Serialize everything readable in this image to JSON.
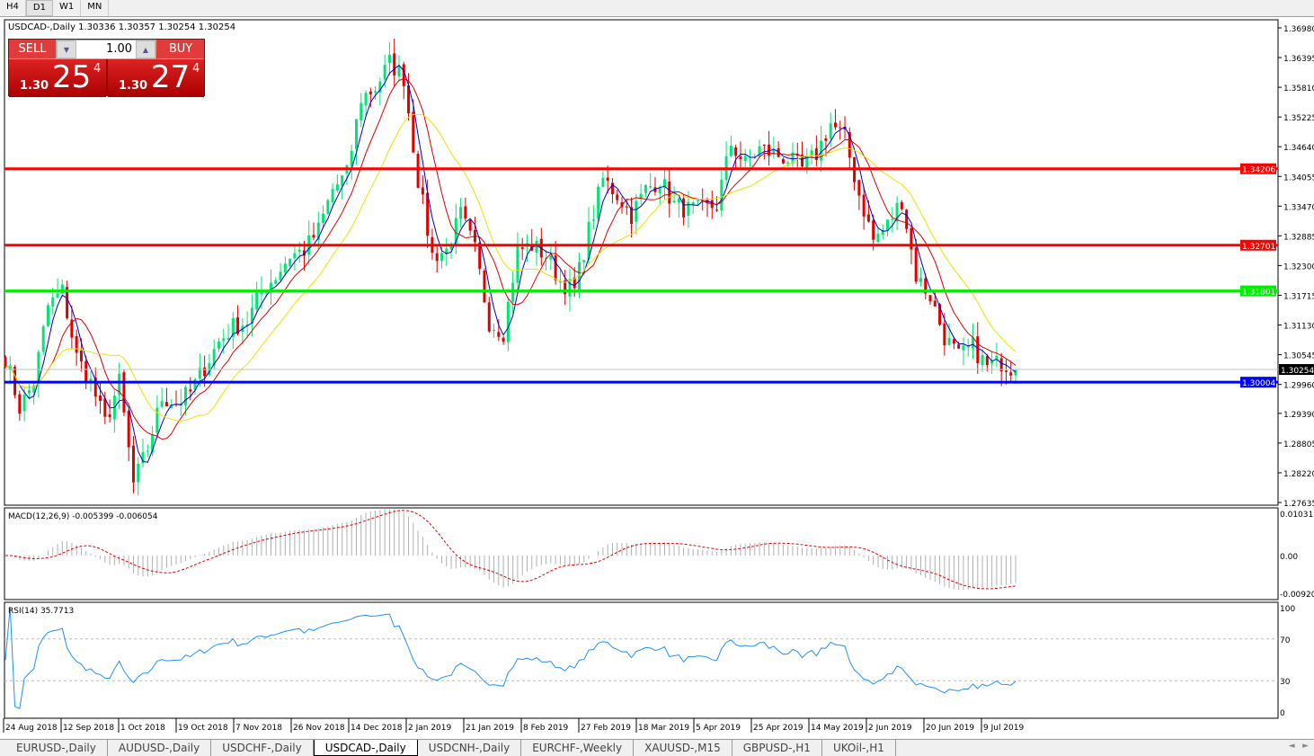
{
  "timeframes": [
    "H4",
    "D1",
    "W1",
    "MN"
  ],
  "active_timeframe": "D1",
  "chart_title": "USDCAD-,Daily  1.30336 1.30357 1.30254 1.30254",
  "trade_panel": {
    "sell_label": "SELL",
    "buy_label": "BUY",
    "lot": "1.00",
    "sell_small": "1.30",
    "sell_big": "25",
    "sell_sup": "4",
    "buy_small": "1.30",
    "buy_big": "27",
    "buy_sup": "4"
  },
  "colors": {
    "bull": "#00e676",
    "bear": "#e00000",
    "ma_fast": "#0000cc",
    "ma_mid": "#e00000",
    "ma_slow": "#e6e600",
    "rsi": "#1e90ff",
    "macd_hist": "#b0b0b0",
    "macd_signal": "#e00000"
  },
  "chart_data": {
    "type": "candlestick",
    "ylim": [
      1.27635,
      1.3698
    ],
    "yticks": [
      "1.36980",
      "1.36395",
      "1.35810",
      "1.35225",
      "1.34640",
      "1.34055",
      "1.33470",
      "1.32885",
      "1.32300",
      "1.31715",
      "1.31130",
      "1.30545",
      "1.29960",
      "1.29390",
      "1.28805",
      "1.28220",
      "1.27635"
    ],
    "xticks": [
      "24 Aug 2018",
      "12 Sep 2018",
      "1 Oct 2018",
      "19 Oct 2018",
      "7 Nov 2018",
      "26 Nov 2018",
      "14 Dec 2018",
      "2 Jan 2019",
      "21 Jan 2019",
      "8 Feb 2019",
      "27 Feb 2019",
      "18 Mar 2019",
      "5 Apr 2019",
      "25 Apr 2019",
      "14 May 2019",
      "2 Jun 2019",
      "20 Jun 2019",
      "9 Jul 2019"
    ],
    "close_samples_every_3_bars": [
      1.305,
      1.295,
      1.3,
      1.315,
      1.318,
      1.305,
      1.3,
      1.292,
      1.3,
      1.28,
      1.287,
      1.297,
      1.296,
      1.298,
      1.303,
      1.308,
      1.311,
      1.312,
      1.318,
      1.321,
      1.325,
      1.326,
      1.33,
      1.338,
      1.341,
      1.356,
      1.358,
      1.363,
      1.36,
      1.34,
      1.325,
      1.326,
      1.333,
      1.326,
      1.312,
      1.31,
      1.326,
      1.327,
      1.325,
      1.32,
      1.318,
      1.33,
      1.34,
      1.337,
      1.333,
      1.338,
      1.34,
      1.335,
      1.334,
      1.334,
      1.335,
      1.347,
      1.343,
      1.346,
      1.345,
      1.344,
      1.342,
      1.345,
      1.351,
      1.348,
      1.337,
      1.328,
      1.331,
      1.336,
      1.321,
      1.317,
      1.309,
      1.305,
      1.307,
      1.303,
      1.304,
      1.30254
    ],
    "levels": [
      {
        "price": "1.34206",
        "color": "#ff0000"
      },
      {
        "price": "1.32701",
        "color": "#ff0000"
      },
      {
        "price": "1.31801",
        "color": "#00ee00"
      },
      {
        "price": "1.30004",
        "color": "#0000ff"
      }
    ],
    "current_price": "1.30254",
    "macd": {
      "label": "MACD(12,26,9) -0.005399 -0.006054",
      "ylim": [
        -0.0092,
        0.010311
      ],
      "ticks": [
        "0.010311",
        "0.00",
        "-0.00920"
      ]
    },
    "rsi": {
      "label": "RSI(14) 35.7713",
      "ylim": [
        0,
        100
      ],
      "ticks": [
        "100",
        "70",
        "30",
        "0"
      ]
    }
  },
  "symbol_tabs": [
    "EURUSD-,Daily",
    "AUDUSD-,Daily",
    "USDCHF-,Daily",
    "USDCAD-,Daily",
    "USDCNH-,Daily",
    "EURCHF-,Weekly",
    "XAUUSD-,M15",
    "GBPUSD-,H1",
    "UKOil-,H1"
  ],
  "active_tab": "USDCAD-,Daily"
}
